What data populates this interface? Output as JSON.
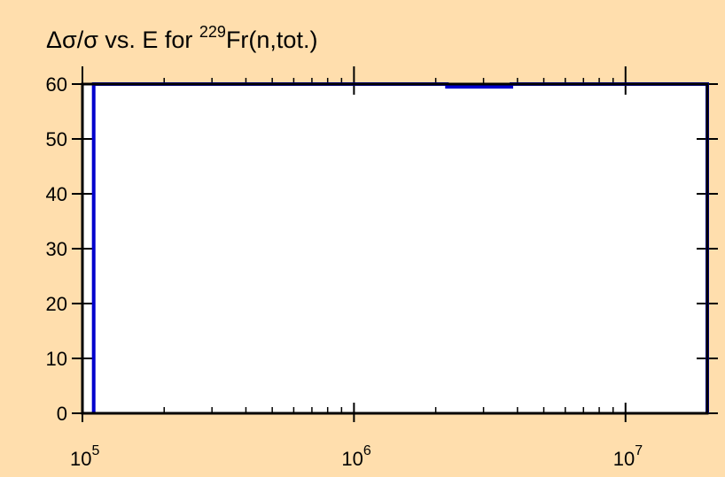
{
  "chart_data": {
    "type": "line",
    "title": {
      "prefix": "Δσ/σ vs. E for ",
      "superscript": "229",
      "suffix": "Fr(n,tot.)"
    },
    "xlabel": "",
    "ylabel": "",
    "x_scale": "log",
    "xlim": [
      100000,
      20000000
    ],
    "ylim": [
      0,
      60
    ],
    "x_ticks": [
      {
        "base": "10",
        "exp": "5",
        "value": 100000
      },
      {
        "base": "10",
        "exp": "6",
        "value": 1000000
      },
      {
        "base": "10",
        "exp": "7",
        "value": 10000000
      }
    ],
    "y_ticks": [
      "0",
      "10",
      "20",
      "30",
      "40",
      "50",
      "60"
    ],
    "grid": false,
    "series": [
      {
        "color": "#0000cd",
        "x": [
          110000,
          110000,
          2200000,
          2200000,
          3800000,
          3800000,
          20000000,
          20000000
        ],
        "y": [
          0,
          60,
          60,
          59.5,
          59.5,
          60,
          60,
          0
        ]
      }
    ]
  }
}
